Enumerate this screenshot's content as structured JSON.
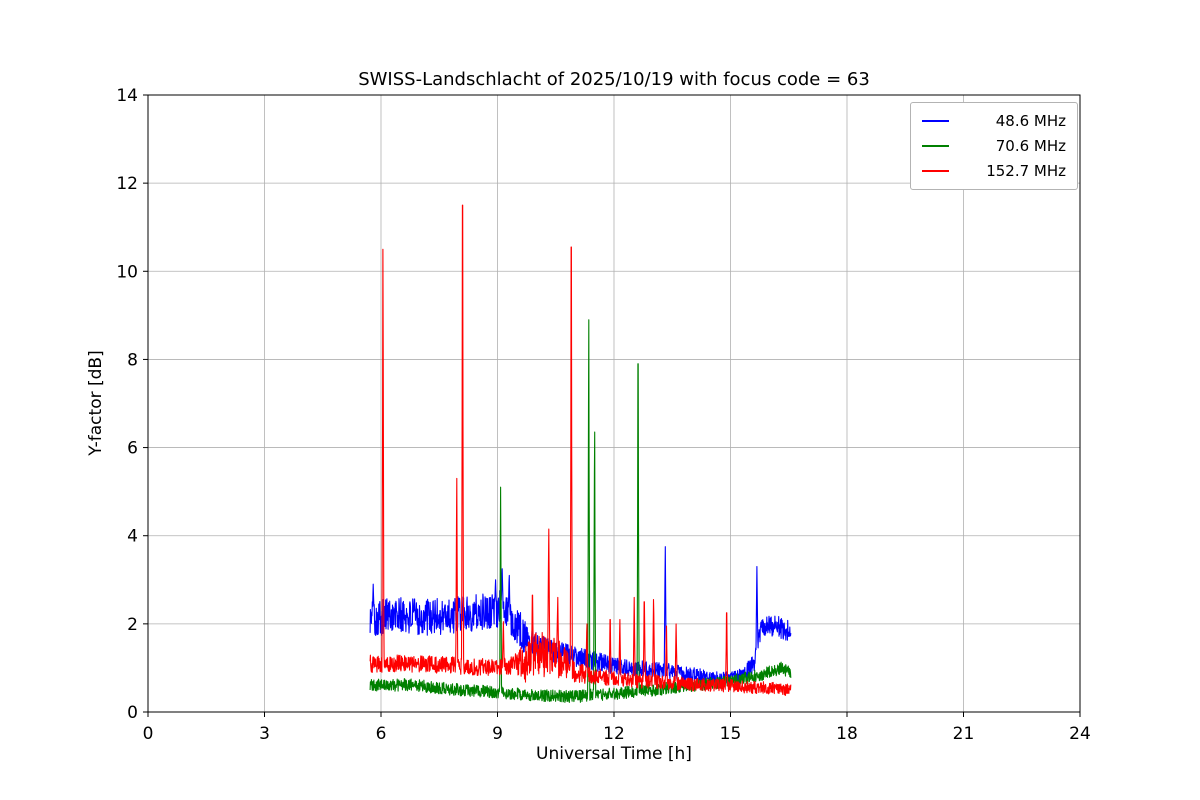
{
  "figure": {
    "background": "#ffffff",
    "grid_color": "#b0b0b0",
    "axes_color": "#000000"
  },
  "chart_data": {
    "type": "line",
    "title": "SWISS-Landschlacht of 2025/10/19 with focus code = 63",
    "xlabel": "Universal Time [h]",
    "ylabel": "Y-factor [dB]",
    "xlim": [
      0,
      24
    ],
    "ylim": [
      0,
      14
    ],
    "xticks": [
      0,
      3,
      6,
      9,
      12,
      15,
      18,
      21,
      24
    ],
    "yticks": [
      0,
      2,
      4,
      6,
      8,
      10,
      12,
      14
    ],
    "grid": true,
    "legend": {
      "position": "upper right",
      "entries": [
        "48.6 MHz",
        "70.6 MHz",
        "152.7 MHz"
      ]
    },
    "series": [
      {
        "name": "48.6 MHz",
        "color": "#0000ff",
        "x_start": 5.72,
        "x_end": 16.55,
        "baseline": [
          [
            5.72,
            2.1
          ],
          [
            6.2,
            2.2
          ],
          [
            7.0,
            2.15
          ],
          [
            8.0,
            2.2
          ],
          [
            8.8,
            2.3
          ],
          [
            9.1,
            2.35
          ],
          [
            9.4,
            2.1
          ],
          [
            9.7,
            1.7
          ],
          [
            10.2,
            1.45
          ],
          [
            10.8,
            1.3
          ],
          [
            11.5,
            1.15
          ],
          [
            12.3,
            1.0
          ],
          [
            13.2,
            0.95
          ],
          [
            14.0,
            0.85
          ],
          [
            14.8,
            0.75
          ],
          [
            15.3,
            0.8
          ],
          [
            15.6,
            1.1
          ],
          [
            15.8,
            1.95
          ],
          [
            16.2,
            1.95
          ],
          [
            16.55,
            1.8
          ]
        ],
        "noise": [
          [
            5.72,
            0.42
          ],
          [
            9.6,
            0.42
          ],
          [
            10.0,
            0.28
          ],
          [
            12.0,
            0.2
          ],
          [
            14.8,
            0.15
          ],
          [
            15.4,
            0.2
          ],
          [
            16.55,
            0.25
          ]
        ],
        "spikes": [
          [
            5.8,
            2.9
          ],
          [
            8.95,
            3.0
          ],
          [
            9.12,
            3.25
          ],
          [
            9.3,
            3.1
          ],
          [
            13.32,
            3.75
          ],
          [
            15.68,
            3.3
          ]
        ]
      },
      {
        "name": "70.6 MHz",
        "color": "#008000",
        "x_start": 5.72,
        "x_end": 16.55,
        "baseline": [
          [
            5.72,
            0.6
          ],
          [
            6.8,
            0.62
          ],
          [
            8.0,
            0.5
          ],
          [
            9.0,
            0.45
          ],
          [
            10.0,
            0.38
          ],
          [
            11.0,
            0.35
          ],
          [
            12.0,
            0.42
          ],
          [
            13.0,
            0.5
          ],
          [
            14.0,
            0.6
          ],
          [
            15.0,
            0.7
          ],
          [
            15.8,
            0.85
          ],
          [
            16.3,
            1.0
          ],
          [
            16.55,
            0.9
          ]
        ],
        "noise": [
          [
            5.72,
            0.14
          ],
          [
            16.55,
            0.14
          ]
        ],
        "spikes": [
          [
            9.08,
            5.1
          ],
          [
            11.35,
            8.9
          ],
          [
            11.5,
            6.35
          ],
          [
            12.62,
            7.9
          ]
        ]
      },
      {
        "name": "152.7 MHz",
        "color": "#ff0000",
        "x_start": 5.72,
        "x_end": 16.55,
        "baseline": [
          [
            5.72,
            1.1
          ],
          [
            7.0,
            1.1
          ],
          [
            8.0,
            1.05
          ],
          [
            9.0,
            1.0
          ],
          [
            9.6,
            1.1
          ],
          [
            10.0,
            1.35
          ],
          [
            10.6,
            1.2
          ],
          [
            11.0,
            0.9
          ],
          [
            11.6,
            0.8
          ],
          [
            12.2,
            0.72
          ],
          [
            13.0,
            0.7
          ],
          [
            14.0,
            0.62
          ],
          [
            15.0,
            0.6
          ],
          [
            15.8,
            0.55
          ],
          [
            16.55,
            0.5
          ]
        ],
        "noise": [
          [
            5.72,
            0.2
          ],
          [
            9.4,
            0.2
          ],
          [
            9.7,
            0.5
          ],
          [
            10.5,
            0.5
          ],
          [
            10.9,
            0.25
          ],
          [
            11.5,
            0.18
          ],
          [
            14.0,
            0.15
          ],
          [
            16.55,
            0.14
          ]
        ],
        "spikes": [
          [
            6.05,
            10.5
          ],
          [
            7.95,
            5.3
          ],
          [
            8.1,
            11.5
          ],
          [
            9.15,
            2.05
          ],
          [
            9.9,
            2.65
          ],
          [
            10.32,
            4.15
          ],
          [
            10.55,
            2.6
          ],
          [
            10.9,
            10.55
          ],
          [
            11.3,
            2.0
          ],
          [
            11.9,
            2.1
          ],
          [
            12.15,
            2.1
          ],
          [
            12.52,
            2.6
          ],
          [
            12.78,
            2.5
          ],
          [
            13.02,
            2.55
          ],
          [
            13.35,
            1.95
          ],
          [
            13.6,
            2.0
          ],
          [
            14.9,
            2.25
          ]
        ]
      }
    ]
  }
}
